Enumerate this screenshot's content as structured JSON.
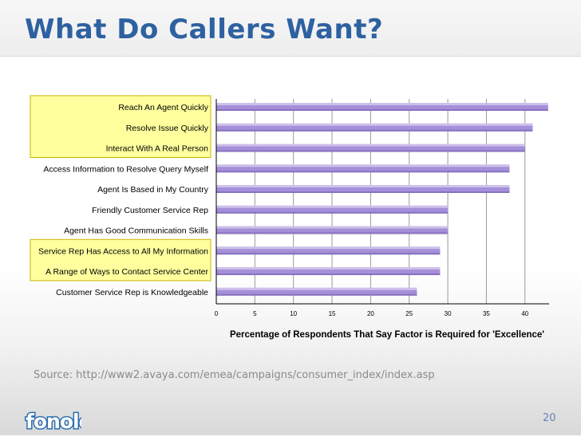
{
  "slide": {
    "title": "What Do Callers Want?",
    "source": "Source: http://www2.avaya.com/emea/campaigns/consumer_index/index.asp",
    "page_number": "20",
    "logo_text": "fonolo"
  },
  "colors": {
    "title": "#2e61a0",
    "bar": "#a58fd9",
    "highlight_fill": "#ffff9e",
    "highlight_border": "#c8b400"
  },
  "chart_data": {
    "type": "bar",
    "orientation": "horizontal",
    "categories": [
      "Reach An Agent Quickly",
      "Resolve Issue Quickly",
      "Interact With A Real Person",
      "Access Information to Resolve Query Myself",
      "Agent Is Based in My Country",
      "Friendly Customer Service Rep",
      "Agent Has Good Communication Skills",
      "Service Rep Has Access to All My Information",
      "A Range of Ways to Contact Service Center",
      "Customer Service Rep is Knowledgeable"
    ],
    "values": [
      43,
      41,
      40,
      38,
      38,
      30,
      30,
      29,
      29,
      26
    ],
    "highlighted_categories": [
      0,
      1,
      2,
      7,
      8
    ],
    "xlabel": "Percentage of Respondents That Say Factor is Required for 'Excellence'",
    "ylabel": "",
    "xlim": [
      0,
      43
    ],
    "xticks": [
      0,
      5,
      10,
      15,
      20,
      25,
      30,
      35,
      40
    ],
    "grid": "vertical"
  }
}
